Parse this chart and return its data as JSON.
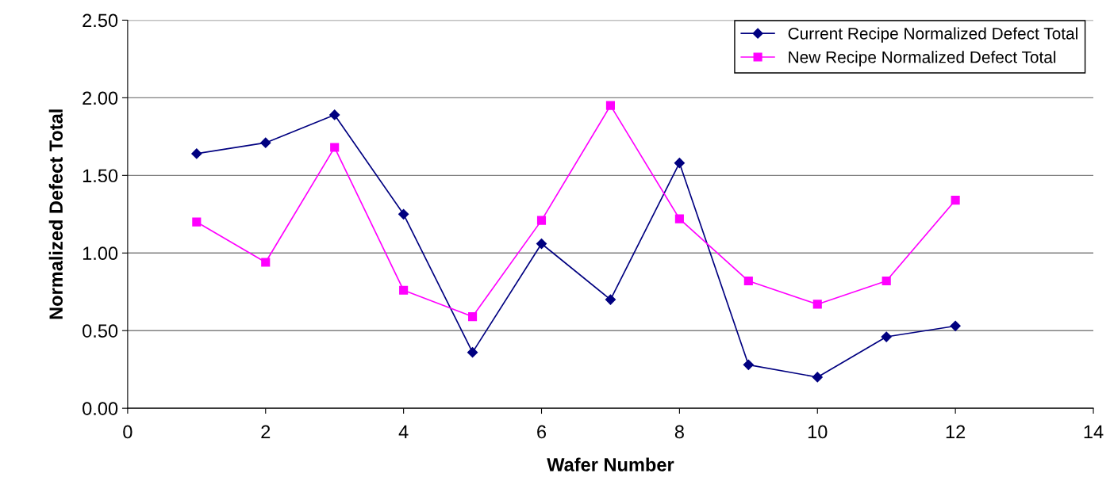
{
  "chart_data": {
    "type": "line",
    "xlabel": "Wafer Number",
    "ylabel": "Normalized Defect Total",
    "x": [
      1,
      2,
      3,
      4,
      5,
      6,
      7,
      8,
      9,
      10,
      11,
      12
    ],
    "series": [
      {
        "name": "Current Recipe Normalized Defect Total",
        "color": "#000080",
        "marker": "diamond",
        "values": [
          1.64,
          1.71,
          1.89,
          1.25,
          0.36,
          1.06,
          0.7,
          1.58,
          0.28,
          0.2,
          0.46,
          0.53
        ]
      },
      {
        "name": "New Recipe Normalized Defect Total",
        "color": "#ff00ff",
        "marker": "square",
        "values": [
          1.2,
          0.94,
          1.68,
          0.76,
          0.59,
          1.21,
          1.95,
          1.22,
          0.82,
          0.67,
          0.82,
          1.34
        ]
      }
    ],
    "xlim": [
      0,
      14
    ],
    "xticks": [
      0,
      2,
      4,
      6,
      8,
      10,
      12,
      14
    ],
    "ylim": [
      0,
      2.5
    ],
    "yticks": [
      {
        "value": 0,
        "label": "0.00"
      },
      {
        "value": 0.5,
        "label": "0.50"
      },
      {
        "value": 1,
        "label": "1.00"
      },
      {
        "value": 1.5,
        "label": "1.50"
      },
      {
        "value": 2,
        "label": "2.00"
      },
      {
        "value": 2.5,
        "label": "2.50"
      }
    ],
    "grid": "y",
    "legend": "top right",
    "line_style": "solid"
  }
}
